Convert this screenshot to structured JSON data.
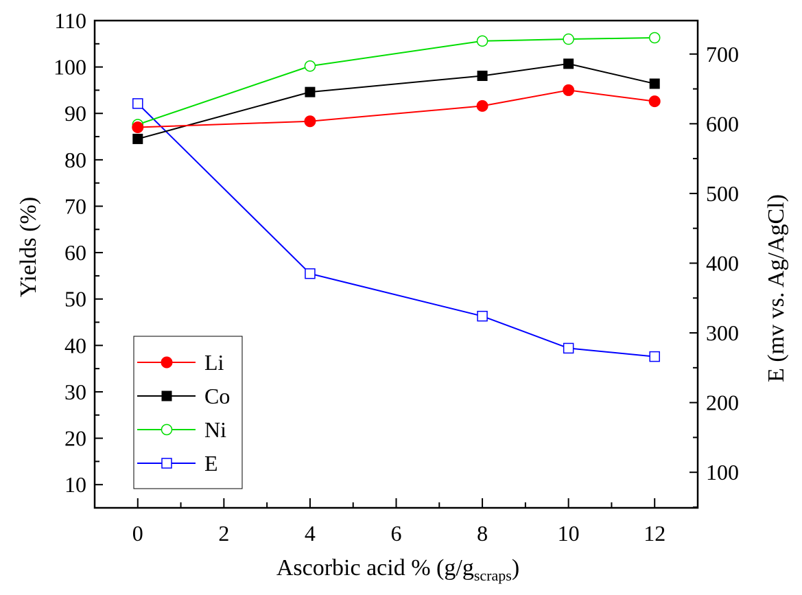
{
  "chart_data": {
    "type": "line",
    "title": "",
    "xlabel": "Ascorbic acid % (g/g",
    "xlabel_sub": "scraps",
    "xlabel_end": ")",
    "ylabel": "Yields (%)",
    "y2label": "E (mv vs. Ag/AgCl)",
    "xlim": [
      -1,
      13
    ],
    "ylim": [
      5,
      110
    ],
    "y2lim": [
      49,
      748
    ],
    "xticks": [
      0,
      2,
      4,
      6,
      8,
      10,
      12
    ],
    "yticks": [
      10,
      20,
      30,
      40,
      50,
      60,
      70,
      80,
      90,
      100,
      110
    ],
    "y2ticks": [
      100,
      200,
      300,
      400,
      500,
      600,
      700
    ],
    "x": [
      0,
      4,
      8,
      10,
      12
    ],
    "legend_position": "bottom-left",
    "series": [
      {
        "name": "Li",
        "axis": "left",
        "color": "#ff0000",
        "marker": "filled-circle",
        "values": [
          87.0,
          88.3,
          91.6,
          95.0,
          92.6
        ]
      },
      {
        "name": "Co",
        "axis": "left",
        "color": "#000000",
        "marker": "filled-square",
        "values": [
          84.5,
          94.6,
          98.1,
          100.7,
          96.4
        ]
      },
      {
        "name": "Ni",
        "axis": "left",
        "color": "#00dd00",
        "marker": "open-circle",
        "values": [
          87.6,
          100.2,
          105.6,
          106.0,
          106.3
        ]
      },
      {
        "name": "E",
        "axis": "right",
        "color": "#0000ff",
        "marker": "open-square",
        "values": [
          629,
          385,
          324,
          278,
          266
        ]
      }
    ]
  }
}
